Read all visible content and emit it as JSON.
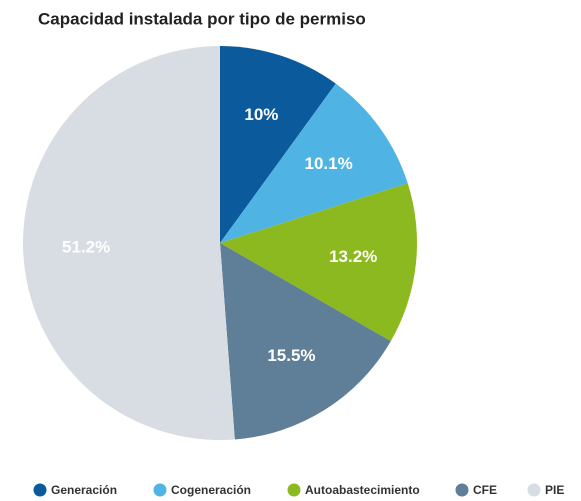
{
  "chart_data": {
    "type": "pie",
    "title": "Capacidad instalada por tipo de permiso",
    "categories": [
      "Generación",
      "Cogeneración",
      "Autoabastecimiento",
      "CFE",
      "PIE"
    ],
    "values": [
      10,
      10.1,
      13.2,
      15.5,
      51.2
    ],
    "value_labels": [
      "10%",
      "10.1%",
      "13.2%",
      "15.5%",
      "51.2%"
    ],
    "colors": [
      "#0b5a9c",
      "#4fb4e4",
      "#8cb91f",
      "#5f7e97",
      "#d8dde3"
    ],
    "legend": "bottom"
  }
}
